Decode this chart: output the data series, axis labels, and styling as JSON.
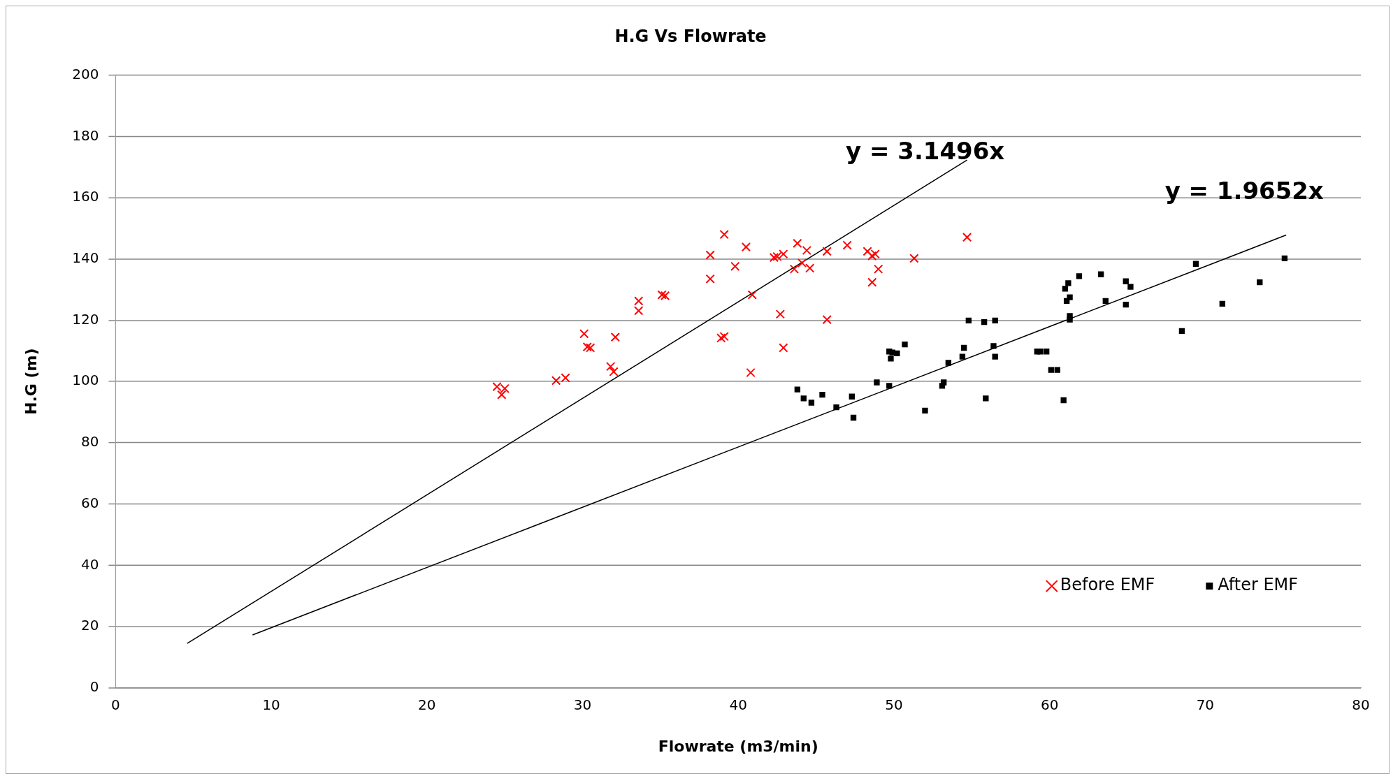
{
  "chart_data": {
    "type": "scatter",
    "title": "H.G Vs Flowrate",
    "xlabel": "Flowrate (m3/min)",
    "ylabel": "H.G (m)",
    "xlim": [
      0,
      80
    ],
    "xticks": [
      0,
      10,
      20,
      30,
      40,
      50,
      60,
      70,
      80
    ],
    "ylim": [
      0,
      200
    ],
    "yticks": [
      0,
      20,
      40,
      60,
      80,
      100,
      120,
      140,
      160,
      180,
      200
    ],
    "grid": "y",
    "legend": "bottom right",
    "annotations": [
      "y = 3.1496x",
      "y = 1.9652x"
    ],
    "series": [
      {
        "name": "Before EMF",
        "type": "scatter",
        "marker": "cross",
        "color": "#ff0000",
        "x": [
          24.5,
          24.8,
          25.0,
          28.3,
          28.9,
          30.1,
          30.3,
          30.5,
          31.8,
          32.0,
          32.1,
          33.6,
          33.6,
          35.1,
          35.3,
          38.2,
          38.2,
          38.9,
          39.1,
          39.1,
          39.8,
          40.5,
          40.8,
          40.9,
          42.3,
          42.5,
          42.7,
          42.9,
          42.9,
          43.6,
          43.8,
          44.1,
          44.4,
          44.6,
          45.7,
          45.7,
          47.0,
          48.3,
          48.6,
          48.6,
          48.8,
          49.0,
          51.3,
          54.7
        ],
        "values": [
          98.3,
          95.7,
          97.7,
          100.3,
          101.2,
          115.6,
          111.3,
          111.0,
          104.9,
          103.2,
          114.5,
          126.3,
          123.1,
          128.3,
          128.0,
          141.3,
          133.5,
          114.2,
          114.7,
          148.0,
          137.6,
          143.9,
          102.9,
          128.3,
          140.5,
          140.8,
          122.0,
          141.6,
          111.0,
          136.7,
          145.1,
          138.7,
          142.8,
          137.0,
          142.5,
          120.2,
          144.5,
          142.5,
          141.0,
          132.4,
          141.6,
          136.7,
          140.2,
          147.1
        ]
      },
      {
        "name": "After EMF",
        "type": "scatter",
        "marker": "square",
        "color": "#000000",
        "x": [
          43.8,
          44.2,
          44.7,
          45.4,
          46.3,
          47.3,
          47.4,
          48.9,
          49.7,
          49.7,
          49.8,
          49.9,
          50.2,
          50.7,
          52.0,
          53.1,
          53.2,
          53.5,
          54.4,
          54.5,
          54.8,
          55.8,
          55.9,
          56.4,
          56.5,
          56.5,
          59.2,
          59.4,
          59.8,
          60.1,
          60.5,
          60.9,
          61.0,
          61.1,
          61.2,
          61.3,
          61.3,
          61.3,
          61.9,
          63.3,
          63.6,
          64.9,
          64.9,
          65.2,
          68.5,
          69.4,
          71.1,
          73.5,
          75.1
        ],
        "values": [
          97.4,
          94.5,
          93.1,
          95.7,
          91.6,
          95.1,
          88.2,
          99.7,
          109.8,
          98.6,
          107.5,
          109.5,
          109.2,
          112.1,
          90.5,
          98.6,
          99.7,
          106.1,
          108.1,
          111.0,
          119.9,
          119.4,
          94.5,
          111.6,
          108.1,
          119.9,
          109.8,
          109.8,
          109.8,
          103.8,
          103.8,
          93.9,
          130.3,
          126.3,
          132.1,
          120.2,
          121.4,
          127.5,
          134.4,
          135.0,
          126.3,
          132.7,
          125.1,
          130.9,
          116.5,
          138.4,
          125.4,
          132.4,
          140.2
        ]
      },
      {
        "type": "line",
        "marker": "none",
        "color": "#000000",
        "x": [
          4.6,
          54.7
        ],
        "values": [
          14.5,
          172.3
        ]
      },
      {
        "type": "line",
        "marker": "none",
        "color": "#000000",
        "x": [
          8.8,
          75.2
        ],
        "values": [
          17.3,
          147.8
        ]
      }
    ]
  }
}
